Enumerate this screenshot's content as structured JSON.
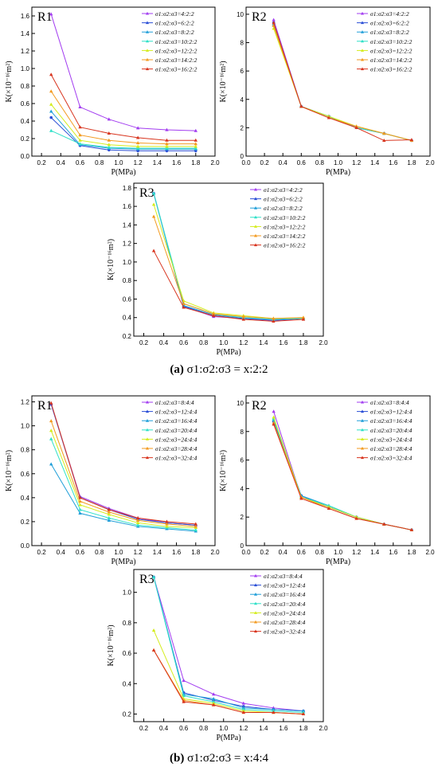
{
  "captions": [
    {
      "label": "(a)",
      "ratio": "σ1:σ2:σ3 = x:2:2"
    },
    {
      "label": "(b)",
      "ratio": "σ1:σ2:σ3 = x:4:4"
    }
  ],
  "series_colors": [
    "#a23cf0",
    "#2b4fd6",
    "#1e9ed8",
    "#2fe0c8",
    "#d4ec1c",
    "#f39a1e",
    "#d8341e"
  ],
  "chart_data": [
    {
      "type": "line",
      "panel": "R1",
      "group": "a",
      "xlabel": "P(MPa)",
      "ylabel": "K(×10⁻¹⁶m²)",
      "xlim": [
        0.1,
        2.0
      ],
      "ylim": [
        0,
        1.7
      ],
      "xticks": [
        0.2,
        0.4,
        0.6,
        0.8,
        1.0,
        1.2,
        1.4,
        1.6,
        1.8,
        2.0
      ],
      "yticks": [
        0.0,
        0.2,
        0.4,
        0.6,
        0.8,
        1.0,
        1.2,
        1.4,
        1.6
      ],
      "x": [
        0.3,
        0.6,
        0.9,
        1.2,
        1.5,
        1.8
      ],
      "legend_position": "top-right",
      "series": [
        {
          "name": "σ1:σ2:σ3=4:2:2",
          "values": [
            1.62,
            0.56,
            0.42,
            0.32,
            0.3,
            0.29
          ]
        },
        {
          "name": "σ1:σ2:σ3=6:2:2",
          "values": [
            0.44,
            0.12,
            0.07,
            0.06,
            0.06,
            0.06
          ]
        },
        {
          "name": "σ1:σ2:σ3=8:2:2",
          "values": [
            0.51,
            0.13,
            0.09,
            0.08,
            0.08,
            0.08
          ]
        },
        {
          "name": "σ1:σ2:σ3=10:2:2",
          "values": [
            0.29,
            0.14,
            0.1,
            0.09,
            0.09,
            0.09
          ]
        },
        {
          "name": "σ1:σ2:σ3=12:2:2",
          "values": [
            0.59,
            0.18,
            0.13,
            0.11,
            0.11,
            0.11
          ]
        },
        {
          "name": "σ1:σ2:σ3=14:2:2",
          "values": [
            0.74,
            0.24,
            0.18,
            0.15,
            0.14,
            0.14
          ]
        },
        {
          "name": "σ1:σ2:σ3=16:2:2",
          "values": [
            0.93,
            0.33,
            0.26,
            0.21,
            0.18,
            0.18
          ]
        }
      ]
    },
    {
      "type": "line",
      "panel": "R2",
      "group": "a",
      "xlabel": "P(MPa)",
      "ylabel": "K(×10⁻¹⁶m²)",
      "xlim": [
        0.0,
        2.0
      ],
      "ylim": [
        0,
        10.5
      ],
      "xticks": [
        0.0,
        0.2,
        0.4,
        0.6,
        0.8,
        1.0,
        1.2,
        1.4,
        1.6,
        1.8,
        2.0
      ],
      "yticks": [
        0,
        2,
        4,
        6,
        8,
        10
      ],
      "x": [
        0.3,
        0.6,
        0.9,
        1.2,
        1.5,
        1.8
      ],
      "legend_position": "top-right",
      "series": [
        {
          "name": "σ1:σ2:σ3=4:2:2",
          "values": [
            9.6,
            3.5,
            2.8,
            2.0,
            1.6,
            1.1
          ]
        },
        {
          "name": "σ1:σ2:σ3=6:2:2",
          "values": [
            9.4,
            3.5,
            2.8,
            2.0,
            1.6,
            1.1
          ]
        },
        {
          "name": "σ1:σ2:σ3=8:2:2",
          "values": [
            9.3,
            3.5,
            2.8,
            2.0,
            1.6,
            1.1
          ]
        },
        {
          "name": "σ1:σ2:σ3=10:2:2",
          "values": [
            9.2,
            3.5,
            2.8,
            2.0,
            1.6,
            1.1
          ]
        },
        {
          "name": "σ1:σ2:σ3=12:2:2",
          "values": [
            9.0,
            3.5,
            2.8,
            2.1,
            1.6,
            1.1
          ]
        },
        {
          "name": "σ1:σ2:σ3=14:2:2",
          "values": [
            9.2,
            3.5,
            2.7,
            2.1,
            1.6,
            1.1
          ]
        },
        {
          "name": "σ1:σ2:σ3=16:2:2",
          "values": [
            9.4,
            3.5,
            2.7,
            2.0,
            1.1,
            1.15
          ]
        }
      ]
    },
    {
      "type": "line",
      "panel": "R3",
      "group": "a",
      "xlabel": "P(MPa)",
      "ylabel": "K(×10⁻¹⁶m²)",
      "xlim": [
        0.1,
        2.0
      ],
      "ylim": [
        0.2,
        1.85
      ],
      "xticks": [
        0.2,
        0.4,
        0.6,
        0.8,
        1.0,
        1.2,
        1.4,
        1.6,
        1.8,
        2.0
      ],
      "yticks": [
        0.2,
        0.4,
        0.6,
        0.8,
        1.0,
        1.2,
        1.4,
        1.6,
        1.8
      ],
      "x": [
        0.3,
        0.6,
        0.9,
        1.2,
        1.5,
        1.8
      ],
      "legend_position": "top-right",
      "series": [
        {
          "name": "σ1:σ2:σ3=4:2:2",
          "values": [
            1.74,
            0.52,
            0.41,
            0.39,
            0.37,
            0.39
          ]
        },
        {
          "name": "σ1:σ2:σ3=6:2:2",
          "values": [
            1.74,
            0.52,
            0.42,
            0.39,
            0.37,
            0.39
          ]
        },
        {
          "name": "σ1:σ2:σ3=8:2:2",
          "values": [
            1.74,
            0.53,
            0.43,
            0.4,
            0.38,
            0.39
          ]
        },
        {
          "name": "σ1:σ2:σ3=10:2:2",
          "values": [
            1.74,
            0.55,
            0.44,
            0.4,
            0.38,
            0.39
          ]
        },
        {
          "name": "σ1:σ2:σ3=12:2:2",
          "values": [
            1.62,
            0.58,
            0.45,
            0.42,
            0.39,
            0.4
          ]
        },
        {
          "name": "σ1:σ2:σ3=14:2:2",
          "values": [
            1.49,
            0.55,
            0.44,
            0.41,
            0.39,
            0.4
          ]
        },
        {
          "name": "σ1:σ2:σ3=16:2:2",
          "values": [
            1.12,
            0.51,
            0.42,
            0.38,
            0.36,
            0.38
          ]
        }
      ]
    },
    {
      "type": "line",
      "panel": "R1",
      "group": "b",
      "xlabel": "P(MPa)",
      "ylabel": "K(×10⁻¹⁶m²)",
      "xlim": [
        0.1,
        2.0
      ],
      "ylim": [
        0.0,
        1.25
      ],
      "xticks": [
        0.2,
        0.4,
        0.6,
        0.8,
        1.0,
        1.2,
        1.4,
        1.6,
        1.8,
        2.0
      ],
      "yticks": [
        0.0,
        0.2,
        0.4,
        0.6,
        0.8,
        1.0,
        1.2
      ],
      "x": [
        0.3,
        0.6,
        0.9,
        1.2,
        1.5,
        1.8
      ],
      "legend_position": "top-right",
      "series": [
        {
          "name": "σ1:σ2:σ3=8:4:4",
          "values": [
            1.18,
            0.41,
            0.31,
            0.23,
            0.19,
            0.17
          ]
        },
        {
          "name": "σ1:σ2:σ3=12:4:4",
          "values": [
            1.18,
            0.4,
            0.3,
            0.22,
            0.19,
            0.17
          ]
        },
        {
          "name": "σ1:σ2:σ3=16:4:4",
          "values": [
            0.68,
            0.27,
            0.21,
            0.16,
            0.14,
            0.12
          ]
        },
        {
          "name": "σ1:σ2:σ3=20:4:4",
          "values": [
            0.89,
            0.3,
            0.23,
            0.17,
            0.15,
            0.13
          ]
        },
        {
          "name": "σ1:σ2:σ3=24:4:4",
          "values": [
            0.96,
            0.34,
            0.26,
            0.19,
            0.16,
            0.15
          ]
        },
        {
          "name": "σ1:σ2:σ3=28:4:4",
          "values": [
            1.04,
            0.37,
            0.28,
            0.21,
            0.18,
            0.16
          ]
        },
        {
          "name": "σ1:σ2:σ3=32:4:4",
          "values": [
            1.19,
            0.4,
            0.3,
            0.23,
            0.2,
            0.18
          ]
        }
      ]
    },
    {
      "type": "line",
      "panel": "R2",
      "group": "b",
      "xlabel": "P(MPa)",
      "ylabel": "K(×10⁻¹⁶m²)",
      "xlim": [
        0.0,
        2.0
      ],
      "ylim": [
        0,
        10.5
      ],
      "xticks": [
        0.0,
        0.2,
        0.4,
        0.6,
        0.8,
        1.0,
        1.2,
        1.4,
        1.6,
        1.8,
        2.0
      ],
      "yticks": [
        0,
        2,
        4,
        6,
        8,
        10
      ],
      "x": [
        0.3,
        0.6,
        0.9,
        1.2,
        1.5,
        1.8
      ],
      "legend_position": "top-right",
      "series": [
        {
          "name": "σ1:σ2:σ3=8:4:4",
          "values": [
            9.4,
            3.4,
            2.7,
            2.0,
            1.5,
            1.1
          ]
        },
        {
          "name": "σ1:σ2:σ3=12:4:4",
          "values": [
            8.7,
            3.5,
            2.7,
            2.0,
            1.5,
            1.1
          ]
        },
        {
          "name": "σ1:σ2:σ3=16:4:4",
          "values": [
            8.8,
            3.5,
            2.8,
            2.0,
            1.5,
            1.1
          ]
        },
        {
          "name": "σ1:σ2:σ3=20:4:4",
          "values": [
            8.9,
            3.4,
            2.8,
            2.0,
            1.5,
            1.1
          ]
        },
        {
          "name": "σ1:σ2:σ3=24:4:4",
          "values": [
            9.0,
            3.4,
            2.7,
            2.0,
            1.5,
            1.1
          ]
        },
        {
          "name": "σ1:σ2:σ3=28:4:4",
          "values": [
            8.6,
            3.4,
            2.6,
            1.9,
            1.5,
            1.1
          ]
        },
        {
          "name": "σ1:σ2:σ3=32:4:4",
          "values": [
            8.5,
            3.3,
            2.6,
            1.9,
            1.5,
            1.1
          ]
        }
      ]
    },
    {
      "type": "line",
      "panel": "R3",
      "group": "b",
      "xlabel": "P(MPa)",
      "ylabel": "K(×10⁻¹⁶m²)",
      "xlim": [
        0.1,
        2.0
      ],
      "ylim": [
        0.15,
        1.15
      ],
      "xticks": [
        0.2,
        0.4,
        0.6,
        0.8,
        1.0,
        1.2,
        1.4,
        1.6,
        1.8,
        2.0
      ],
      "yticks": [
        0.2,
        0.4,
        0.6,
        0.8,
        1.0
      ],
      "x": [
        0.3,
        0.6,
        0.9,
        1.2,
        1.5,
        1.8
      ],
      "legend_position": "top-right",
      "series": [
        {
          "name": "σ1:σ2:σ3=8:4:4",
          "values": [
            1.1,
            0.42,
            0.33,
            0.27,
            0.24,
            0.22
          ]
        },
        {
          "name": "σ1:σ2:σ3=12:4:4",
          "values": [
            1.1,
            0.34,
            0.29,
            0.25,
            0.23,
            0.22
          ]
        },
        {
          "name": "σ1:σ2:σ3=16:4:4",
          "values": [
            1.1,
            0.33,
            0.3,
            0.24,
            0.23,
            0.22
          ]
        },
        {
          "name": "σ1:σ2:σ3=20:4:4",
          "values": [
            1.1,
            0.32,
            0.28,
            0.23,
            0.22,
            0.21
          ]
        },
        {
          "name": "σ1:σ2:σ3=24:4:4",
          "values": [
            0.75,
            0.3,
            0.27,
            0.22,
            0.21,
            0.2
          ]
        },
        {
          "name": "σ1:σ2:σ3=28:4:4",
          "values": [
            0.62,
            0.29,
            0.26,
            0.21,
            0.21,
            0.2
          ]
        },
        {
          "name": "σ1:σ2:σ3=32:4:4",
          "values": [
            0.62,
            0.28,
            0.26,
            0.21,
            0.21,
            0.2
          ]
        }
      ]
    }
  ]
}
